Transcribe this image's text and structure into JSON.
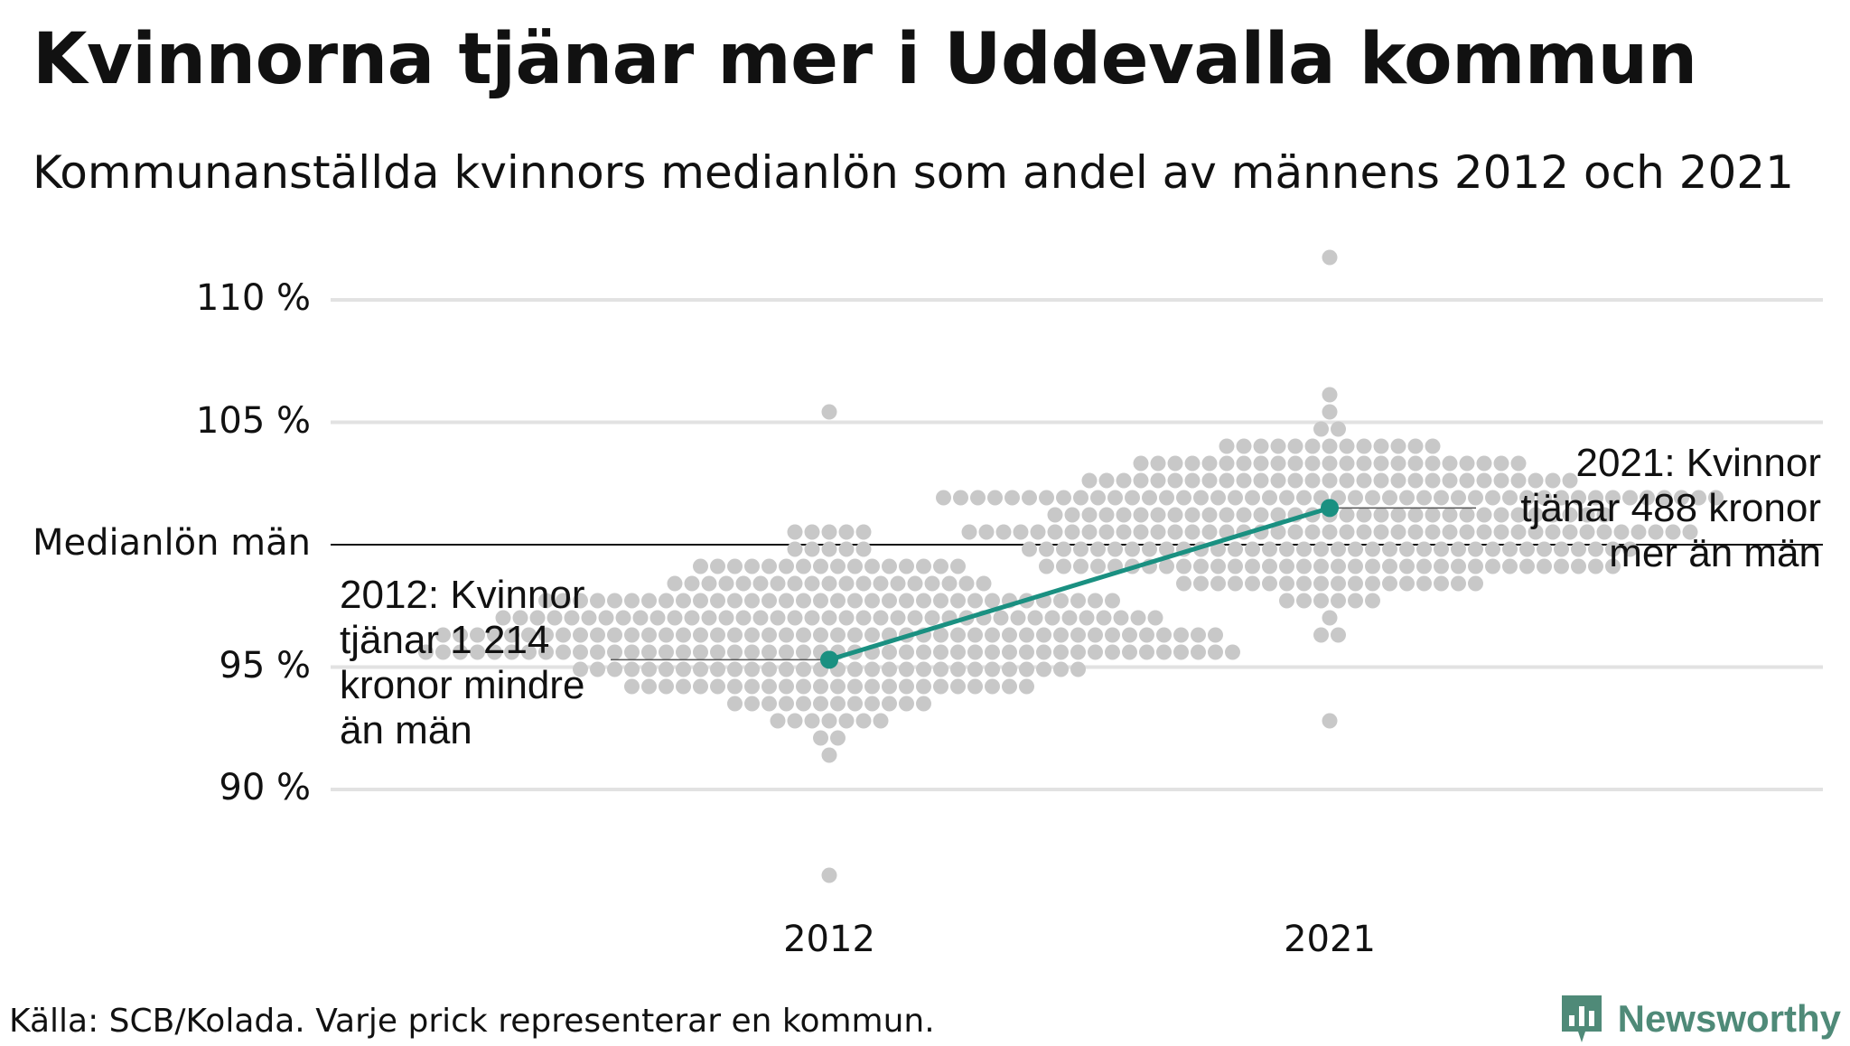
{
  "header": {
    "title": "Kvinnorna tjänar mer i Uddevalla kommun",
    "subtitle": "Kommunanställda kvinnors medianlön som andel av männens 2012 och 2021"
  },
  "chart_data": {
    "type": "scatter",
    "title": "Kvinnorna tjänar mer i Uddevalla kommun",
    "subtitle": "Kommunanställda kvinnors medianlön som andel av männens 2012 och 2021",
    "categories": [
      "2012",
      "2021"
    ],
    "ylim": [
      85,
      112
    ],
    "ytick_values": [
      90,
      95,
      100,
      105,
      110
    ],
    "ytick_labels": [
      "90 %",
      "95 %",
      "Medianlön män",
      "105 %",
      "110 %"
    ],
    "grid": true,
    "reference_line": {
      "value": 100,
      "label": "Medianlön män"
    },
    "series": [
      {
        "name": "Uddevalla",
        "x": [
          "2012",
          "2021"
        ],
        "values": [
          95.3,
          101.5
        ],
        "color": "#1a9081"
      }
    ],
    "distribution": {
      "description_hidden": false,
      "dot_color": "#c8c8c8",
      "2012": {
        "min": 86.4,
        "max": 105.3,
        "median": 96.6,
        "count": 290
      },
      "2021": {
        "min": 92.5,
        "max": 111.4,
        "median": 101.0,
        "count": 290
      }
    },
    "annotations": [
      {
        "x": "2012",
        "lines": [
          "2012: Kvinnor",
          "tjänar 1 214",
          "kronor mindre",
          "än män"
        ]
      },
      {
        "x": "2021",
        "lines": [
          "2021: Kvinnor",
          "tjänar 488 kronor",
          "mer än män"
        ]
      }
    ]
  },
  "footer": {
    "source": "Källa: SCB/Kolada. Varje prick representerar en kommun.",
    "brand": "Newsworthy",
    "brand_color": "#4f8a78"
  },
  "colors": {
    "accent": "#1a9081",
    "dots": "#c8c8c8",
    "grid": "#e2e2e2",
    "reference": "#111111"
  }
}
